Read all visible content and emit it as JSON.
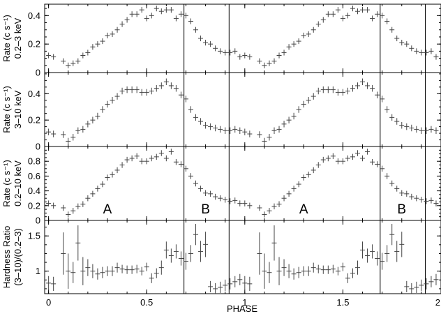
{
  "chart_data": {
    "type": "scatter",
    "x_axis": {
      "label": "PHASE",
      "range": [
        -0.02,
        2.0
      ],
      "ticks": [
        0,
        0.5,
        1,
        1.5,
        2
      ],
      "tick_labels": [
        "0",
        "0.5",
        "1",
        "1.5",
        "2"
      ]
    },
    "phase_centers": [
      0,
      0.025,
      0.075,
      0.1,
      0.125,
      0.15,
      0.175,
      0.2,
      0.225,
      0.25,
      0.275,
      0.3,
      0.325,
      0.35,
      0.375,
      0.4,
      0.425,
      0.45,
      0.475,
      0.5,
      0.525,
      0.55,
      0.575,
      0.6,
      0.625,
      0.65,
      0.675,
      0.7,
      0.725,
      0.75,
      0.775,
      0.8,
      0.825,
      0.85,
      0.875,
      0.9,
      0.925,
      0.95,
      0.975
    ],
    "x_error": 0.0125,
    "boundaries": [
      0.69,
      0.92,
      1.69,
      1.92
    ],
    "panels": [
      {
        "ylabel": [
          "Rate (c s⁻¹)",
          "0.2–3 keV"
        ],
        "ylim": [
          0,
          0.48
        ],
        "yticks": [
          0,
          0.2,
          0.4
        ],
        "ytick_labels": [
          "0",
          "0.2",
          "0.4"
        ],
        "y": [
          0.12,
          0.11,
          0.08,
          0.05,
          0.065,
          0.08,
          0.12,
          0.14,
          0.18,
          0.2,
          0.22,
          0.26,
          0.27,
          0.3,
          0.34,
          0.37,
          0.41,
          0.41,
          0.44,
          0.38,
          0.4,
          0.45,
          0.43,
          0.44,
          0.44,
          0.38,
          0.41,
          0.4,
          0.36,
          0.3,
          0.24,
          0.21,
          0.2,
          0.17,
          0.15,
          0.14,
          0.14,
          0.15,
          0.11
        ],
        "y_error": 0.02
      },
      {
        "ylabel": [
          "Rate (c s⁻¹)",
          "3–10 keV"
        ],
        "ylim": [
          0,
          0.56
        ],
        "yticks": [
          0,
          0.2,
          0.4
        ],
        "ytick_labels": [
          "0",
          "0.2",
          "0.4"
        ],
        "y": [
          0.11,
          0.095,
          0.09,
          0.04,
          0.07,
          0.12,
          0.13,
          0.17,
          0.2,
          0.23,
          0.28,
          0.32,
          0.35,
          0.38,
          0.42,
          0.43,
          0.43,
          0.43,
          0.41,
          0.41,
          0.42,
          0.44,
          0.46,
          0.49,
          0.46,
          0.44,
          0.39,
          0.36,
          0.28,
          0.22,
          0.19,
          0.16,
          0.15,
          0.14,
          0.13,
          0.12,
          0.12,
          0.13,
          0.12
        ],
        "y_error": 0.025
      },
      {
        "ylabel": [
          "Rate (c s⁻¹)",
          "0.2–10 keV"
        ],
        "ylim": [
          0,
          1.0
        ],
        "yticks": [
          0,
          0.2,
          0.4,
          0.6,
          0.8
        ],
        "ytick_labels": [
          "0",
          "0.2",
          "0.4",
          "0.6",
          "0.8"
        ],
        "y": [
          0.23,
          0.2,
          0.17,
          0.08,
          0.13,
          0.19,
          0.22,
          0.3,
          0.36,
          0.43,
          0.49,
          0.58,
          0.62,
          0.68,
          0.75,
          0.82,
          0.84,
          0.87,
          0.8,
          0.8,
          0.84,
          0.86,
          0.91,
          0.84,
          0.93,
          0.79,
          0.76,
          0.7,
          0.6,
          0.5,
          0.43,
          0.37,
          0.36,
          0.32,
          0.3,
          0.28,
          0.26,
          0.27,
          0.23
        ],
        "y_error": 0.04,
        "region_labels": [
          {
            "text": "A",
            "x": 0.3
          },
          {
            "text": "B",
            "x": 0.8
          },
          {
            "text": "A",
            "x": 1.3
          },
          {
            "text": "B",
            "x": 1.8
          }
        ]
      },
      {
        "ylabel": [
          "Hardness Ratio",
          "(3–10)/(0.2–3)"
        ],
        "ylim": [
          0.68,
          1.72
        ],
        "yticks": [
          1,
          1.5
        ],
        "ytick_labels": [
          "1",
          "1.5"
        ],
        "y": [
          0.83,
          0.82,
          1.25,
          1.0,
          0.98,
          1.4,
          1.0,
          1.05,
          1.0,
          0.96,
          0.98,
          1.0,
          1.0,
          1.05,
          1.03,
          1.02,
          1.02,
          1.03,
          1.0,
          1.06,
          0.9,
          0.97,
          1.05,
          1.3,
          1.22,
          1.28,
          1.18,
          1.14,
          1.25,
          1.52,
          1.28,
          1.38,
          0.78,
          0.75,
          0.77,
          0.8,
          0.82,
          0.85,
          0.88
        ],
        "y_error": [
          0.1,
          0.1,
          0.3,
          0.25,
          0.15,
          0.25,
          0.2,
          0.12,
          0.1,
          0.08,
          0.08,
          0.07,
          0.07,
          0.07,
          0.06,
          0.06,
          0.06,
          0.06,
          0.06,
          0.06,
          0.07,
          0.07,
          0.1,
          0.12,
          0.1,
          0.1,
          0.1,
          0.12,
          0.12,
          0.15,
          0.15,
          0.18,
          0.08,
          0.08,
          0.08,
          0.08,
          0.08,
          0.08,
          0.08
        ]
      }
    ],
    "colors": {
      "marker": "#444444",
      "axis": "#000000",
      "boundary": "#000000"
    }
  }
}
